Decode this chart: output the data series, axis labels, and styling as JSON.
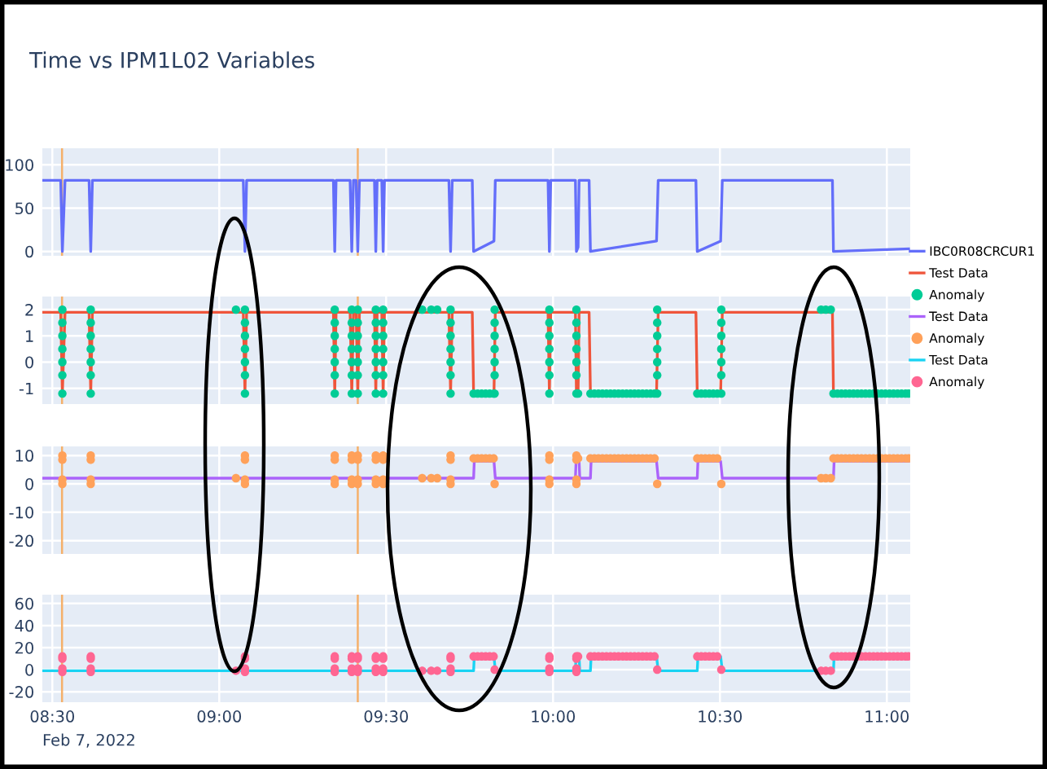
{
  "chart_data": [
    {
      "type": "line",
      "title": "Time vs IPM1L02 Variables",
      "xlim": [
        8.47,
        11.07
      ],
      "xticks": [
        {
          "value": 8.5,
          "label": null
        },
        {
          "value": 9,
          "label": null
        },
        {
          "value": 9.5,
          "label": null
        },
        {
          "value": 10,
          "label": null
        },
        {
          "value": 10.5,
          "label": null
        },
        {
          "value": 11,
          "label": null
        }
      ],
      "ylim": [
        -5,
        119
      ],
      "yticks": [
        0,
        50,
        100
      ],
      "tick_labels": "y",
      "grid": true,
      "legend": "right",
      "ref_lines": [
        {
          "axis": "x",
          "value": 8.529,
          "color": "#f5b06a"
        },
        {
          "axis": "x",
          "value": 9.415,
          "color": "#f5b06a"
        }
      ],
      "series": [
        {
          "name": "IBC0R08CRCUR1",
          "color": "#636efa",
          "x": [
            8.472,
            8.525,
            8.53,
            8.538,
            8.61,
            8.615,
            8.62,
            9.072,
            9.077,
            9.082,
            9.342,
            9.346,
            9.35,
            9.392,
            9.397,
            9.402,
            9.41,
            9.415,
            9.42,
            9.465,
            9.469,
            9.473,
            9.487,
            9.491,
            9.495,
            9.688,
            9.693,
            9.698,
            9.758,
            9.762,
            9.823,
            9.827,
            9.985,
            9.989,
            9.993,
            10.067,
            10.07,
            10.075,
            10.078,
            10.108,
            10.112,
            10.31,
            10.315,
            10.428,
            10.432,
            10.502,
            10.507,
            10.837,
            10.84,
            11.065
          ],
          "values": [
            82,
            82,
            0,
            82,
            82,
            0,
            82,
            82,
            0,
            82,
            82,
            0,
            82,
            82,
            0,
            82,
            82,
            0,
            82,
            82,
            0,
            82,
            82,
            0,
            82,
            82,
            0,
            82,
            82,
            0,
            12,
            82,
            82,
            0,
            82,
            82,
            0,
            5,
            82,
            82,
            0,
            12,
            82,
            82,
            0,
            12,
            82,
            82,
            0,
            3
          ]
        }
      ]
    },
    {
      "type": "line",
      "xlim": [
        8.47,
        11.07
      ],
      "xticks": [
        {
          "value": 8.5,
          "label": null
        },
        {
          "value": 9,
          "label": null
        },
        {
          "value": 9.5,
          "label": null
        },
        {
          "value": 10,
          "label": null
        },
        {
          "value": 10.5,
          "label": null
        },
        {
          "value": 11,
          "label": null
        }
      ],
      "ylim": [
        -1.6,
        2.5
      ],
      "yticks": [
        -1,
        0,
        1,
        2
      ],
      "tick_labels": "y",
      "grid": true,
      "legend": "right",
      "ref_lines": [
        {
          "axis": "x",
          "value": 8.529,
          "color": "#f5b06a"
        },
        {
          "axis": "x",
          "value": 9.415,
          "color": "#f5b06a"
        }
      ],
      "series": [
        {
          "name": "Test Data",
          "color": "#ef553b",
          "x": [
            8.472,
            8.525,
            8.53,
            8.538,
            8.61,
            8.615,
            8.62,
            9.072,
            9.077,
            9.082,
            9.342,
            9.346,
            9.35,
            9.392,
            9.397,
            9.402,
            9.41,
            9.415,
            9.42,
            9.465,
            9.469,
            9.473,
            9.487,
            9.491,
            9.495,
            9.688,
            9.693,
            9.698,
            9.758,
            9.762,
            9.823,
            9.827,
            9.985,
            9.989,
            9.993,
            10.067,
            10.07,
            10.075,
            10.078,
            10.108,
            10.112,
            10.31,
            10.315,
            10.428,
            10.432,
            10.502,
            10.507,
            10.837,
            10.84,
            11.065
          ],
          "values": [
            1.9,
            1.9,
            -1.2,
            1.9,
            1.9,
            -1.2,
            1.9,
            1.9,
            -1.2,
            1.9,
            1.9,
            -1.2,
            1.9,
            1.9,
            -1.2,
            1.9,
            1.9,
            -1.2,
            1.9,
            1.9,
            -1.2,
            1.9,
            1.9,
            -1.2,
            1.9,
            1.9,
            -1.2,
            1.9,
            1.9,
            -1.2,
            -1.2,
            1.9,
            1.9,
            -1.2,
            1.9,
            1.9,
            -1.2,
            -1.2,
            1.9,
            1.9,
            -1.2,
            -1.2,
            1.9,
            1.9,
            -1.2,
            -1.2,
            1.9,
            1.9,
            -1.2,
            -1.2
          ]
        },
        {
          "name": "Anomaly",
          "type": "scatter",
          "marker": "circle",
          "color": "#00cc96",
          "x": [
            8.53,
            8.53,
            8.53,
            8.53,
            8.53,
            8.53,
            8.53,
            8.615,
            8.615,
            8.615,
            8.615,
            8.615,
            8.615,
            8.615,
            9.077,
            9.077,
            9.077,
            9.077,
            9.077,
            9.077,
            9.077,
            9.346,
            9.346,
            9.346,
            9.346,
            9.346,
            9.346,
            9.346,
            9.397,
            9.397,
            9.397,
            9.397,
            9.397,
            9.397,
            9.397,
            9.415,
            9.415,
            9.415,
            9.415,
            9.415,
            9.415,
            9.415,
            9.469,
            9.469,
            9.469,
            9.469,
            9.469,
            9.469,
            9.469,
            9.491,
            9.491,
            9.491,
            9.491,
            9.491,
            9.491,
            9.491,
            9.693,
            9.693,
            9.693,
            9.693,
            9.693,
            9.693,
            9.693,
            9.989,
            9.989,
            9.989,
            9.989,
            9.989,
            9.989,
            9.989,
            10.07,
            10.07,
            10.07,
            10.07,
            10.07,
            10.07,
            10.07,
            9.825,
            9.825,
            9.825,
            9.825,
            9.825,
            9.825,
            9.825,
            10.312,
            10.312,
            10.312,
            10.312,
            10.312,
            10.312,
            10.312,
            10.504,
            10.504,
            10.504,
            10.504,
            10.504,
            10.504,
            10.504,
            9.762,
            9.774,
            9.786,
            9.798,
            9.81,
            9.822,
            10.075,
            10.112,
            10.124,
            10.136,
            10.148,
            10.16,
            10.172,
            10.184,
            10.196,
            10.208,
            10.22,
            10.232,
            10.244,
            10.256,
            10.268,
            10.28,
            10.292,
            10.304,
            10.432,
            10.444,
            10.456,
            10.468,
            10.48,
            10.492,
            10.84,
            10.852,
            10.864,
            10.876,
            10.888,
            10.9,
            10.912,
            10.924,
            10.936,
            10.948,
            10.96,
            10.972,
            10.984,
            10.996,
            11.008,
            11.02,
            11.032,
            11.044,
            11.056,
            11.065,
            9.05,
            9.608,
            9.635,
            9.653,
            10.803,
            10.817,
            10.832
          ],
          "values": [
            2,
            1.5,
            1,
            0.5,
            0,
            -0.5,
            -1.2,
            2,
            1.5,
            1,
            0.5,
            0,
            -0.5,
            -1.2,
            2,
            1.5,
            1,
            0.5,
            0,
            -0.5,
            -1.2,
            2,
            1.5,
            1,
            0.5,
            0,
            -0.5,
            -1.2,
            2,
            1.5,
            1,
            0.5,
            0,
            -0.5,
            -1.2,
            2,
            1.5,
            1,
            0.5,
            0,
            -0.5,
            -1.2,
            2,
            1.5,
            1,
            0.5,
            0,
            -0.5,
            -1.2,
            2,
            1.5,
            1,
            0.5,
            0,
            -0.5,
            -1.2,
            2,
            1.5,
            1,
            0.5,
            0,
            -0.5,
            -1.2,
            2,
            1.5,
            1,
            0.5,
            0,
            -0.5,
            -1.2,
            2,
            1.5,
            1,
            0.5,
            0,
            -0.5,
            -1.2,
            2,
            1.5,
            1,
            0.5,
            0,
            -0.5,
            -1.2,
            2,
            1.5,
            1,
            0.5,
            0,
            -0.5,
            -1.2,
            2,
            1.5,
            1,
            0.5,
            0,
            -0.5,
            -1.2,
            -1.2,
            -1.2,
            -1.2,
            -1.2,
            -1.2,
            -1.2,
            -1.2,
            -1.2,
            -1.2,
            -1.2,
            -1.2,
            -1.2,
            -1.2,
            -1.2,
            -1.2,
            -1.2,
            -1.2,
            -1.2,
            -1.2,
            -1.2,
            -1.2,
            -1.2,
            -1.2,
            -1.2,
            -1.2,
            -1.2,
            -1.2,
            -1.2,
            -1.2,
            -1.2,
            -1.2,
            -1.2,
            -1.2,
            -1.2,
            -1.2,
            -1.2,
            -1.2,
            -1.2,
            -1.2,
            -1.2,
            -1.2,
            -1.2,
            -1.2,
            -1.2,
            -1.2,
            -1.2,
            -1.2,
            -1.2,
            -1.2,
            -1.2,
            2,
            2,
            2,
            2,
            2,
            2,
            2
          ]
        }
      ]
    },
    {
      "type": "line",
      "xlim": [
        8.47,
        11.07
      ],
      "xticks": [
        {
          "value": 8.5,
          "label": null
        },
        {
          "value": 9,
          "label": null
        },
        {
          "value": 9.5,
          "label": null
        },
        {
          "value": 10,
          "label": null
        },
        {
          "value": 10.5,
          "label": null
        },
        {
          "value": 11,
          "label": null
        }
      ],
      "ylim": [
        -24.7,
        13.2
      ],
      "yticks": [
        -20,
        -10,
        0,
        10
      ],
      "tick_labels": "y",
      "grid": true,
      "legend": "right",
      "ref_lines": [
        {
          "axis": "x",
          "value": 8.529,
          "color": "#f5b06a"
        },
        {
          "axis": "x",
          "value": 9.415,
          "color": "#f5b06a"
        }
      ],
      "series": [
        {
          "name": "Test Data",
          "color": "#ab63fa",
          "x": [
            8.472,
            9.762,
            9.764,
            9.823,
            9.827,
            10.067,
            10.069,
            10.078,
            10.08,
            10.112,
            10.114,
            10.31,
            10.315,
            10.432,
            10.434,
            10.502,
            10.507,
            10.84,
            10.842,
            11.065
          ],
          "values": [
            2,
            2,
            8,
            8,
            2,
            2,
            8,
            8,
            2,
            2,
            8,
            8,
            2,
            2,
            8,
            8,
            2,
            2,
            8,
            8
          ]
        },
        {
          "name": "Anomaly",
          "type": "scatter",
          "marker": "circle",
          "color": "#ffa15a",
          "x": [
            8.53,
            8.53,
            8.53,
            8.53,
            8.615,
            8.615,
            8.615,
            8.615,
            9.077,
            9.077,
            9.077,
            9.077,
            9.346,
            9.346,
            9.346,
            9.346,
            9.397,
            9.397,
            9.397,
            9.397,
            9.415,
            9.415,
            9.415,
            9.415,
            9.469,
            9.469,
            9.469,
            9.469,
            9.491,
            9.491,
            9.491,
            9.491,
            9.693,
            9.693,
            9.693,
            9.693,
            9.989,
            9.989,
            9.989,
            9.989,
            10.07,
            10.07,
            10.07,
            10.07,
            9.825,
            10.312,
            10.504,
            9.762,
            9.774,
            9.786,
            9.798,
            9.81,
            9.822,
            10.075,
            10.112,
            10.124,
            10.136,
            10.148,
            10.16,
            10.172,
            10.184,
            10.196,
            10.208,
            10.22,
            10.232,
            10.244,
            10.256,
            10.268,
            10.28,
            10.292,
            10.304,
            10.432,
            10.444,
            10.456,
            10.468,
            10.48,
            10.492,
            10.84,
            10.852,
            10.864,
            10.876,
            10.888,
            10.9,
            10.912,
            10.924,
            10.936,
            10.948,
            10.96,
            10.972,
            10.984,
            10.996,
            11.008,
            11.02,
            11.032,
            11.044,
            11.056,
            11.065,
            9.05,
            9.608,
            9.635,
            9.653,
            10.803,
            10.817,
            10.832
          ],
          "values": [
            10,
            8.5,
            1.5,
            0,
            10,
            8.5,
            1.5,
            0,
            10,
            8.5,
            1.5,
            0,
            10,
            8.5,
            1.5,
            0,
            10,
            8.5,
            1.5,
            0,
            10,
            8.5,
            1.5,
            0,
            10,
            8.5,
            1.5,
            0,
            10,
            8.5,
            1.5,
            0,
            10,
            8.5,
            1.5,
            0,
            10,
            8.5,
            1.5,
            0,
            10,
            8.5,
            1.5,
            0,
            0,
            0,
            0,
            9,
            9,
            9,
            9,
            9,
            9,
            9,
            9,
            9,
            9,
            9,
            9,
            9,
            9,
            9,
            9,
            9,
            9,
            9,
            9,
            9,
            9,
            9,
            9,
            9,
            9,
            9,
            9,
            9,
            9,
            9,
            9,
            9,
            9,
            9,
            9,
            9,
            9,
            9,
            9,
            9,
            9,
            9,
            9,
            9,
            9,
            9,
            9,
            9,
            9,
            2,
            2,
            2,
            2,
            2,
            2,
            2
          ]
        }
      ]
    },
    {
      "type": "line",
      "xlim": [
        8.47,
        11.07
      ],
      "xticks": [
        {
          "value": 8.5,
          "label": "08:30"
        },
        {
          "value": 9,
          "label": "09:00"
        },
        {
          "value": 9.5,
          "label": "09:30"
        },
        {
          "value": 10,
          "label": "10:00"
        },
        {
          "value": 10.5,
          "label": "10:30"
        },
        {
          "value": 11,
          "label": "11:00"
        }
      ],
      "ylim": [
        -29.5,
        68
      ],
      "yticks": [
        -20,
        0,
        20,
        40,
        60
      ],
      "grid": true,
      "legend": "right",
      "annotations": [
        "Feb 7, 2022"
      ],
      "ref_lines": [
        {
          "axis": "x",
          "value": 8.529,
          "color": "#f5b06a"
        },
        {
          "axis": "x",
          "value": 9.415,
          "color": "#f5b06a"
        }
      ],
      "series": [
        {
          "name": "Test Data",
          "color": "#19d3f3",
          "x": [
            8.472,
            9.762,
            9.764,
            9.823,
            9.827,
            10.067,
            10.069,
            10.078,
            10.08,
            10.112,
            10.114,
            10.31,
            10.315,
            10.432,
            10.434,
            10.502,
            10.507,
            10.84,
            10.842,
            11.065
          ],
          "values": [
            -1,
            -1,
            12,
            12,
            -1,
            -1,
            12,
            12,
            -1,
            -1,
            12,
            12,
            -1,
            -1,
            12,
            12,
            -1,
            -1,
            12,
            12
          ]
        },
        {
          "name": "Anomaly",
          "type": "scatter",
          "marker": "circle",
          "color": "#ff6692",
          "x": [
            8.53,
            8.53,
            8.53,
            8.53,
            8.615,
            8.615,
            8.615,
            8.615,
            9.077,
            9.077,
            9.077,
            9.077,
            9.346,
            9.346,
            9.346,
            9.346,
            9.397,
            9.397,
            9.397,
            9.397,
            9.415,
            9.415,
            9.415,
            9.415,
            9.469,
            9.469,
            9.469,
            9.469,
            9.491,
            9.491,
            9.491,
            9.491,
            9.693,
            9.693,
            9.693,
            9.693,
            9.989,
            9.989,
            9.989,
            9.989,
            10.07,
            10.07,
            10.07,
            10.07,
            9.825,
            10.312,
            10.504,
            9.762,
            9.774,
            9.786,
            9.798,
            9.81,
            9.822,
            10.075,
            10.112,
            10.124,
            10.136,
            10.148,
            10.16,
            10.172,
            10.184,
            10.196,
            10.208,
            10.22,
            10.232,
            10.244,
            10.256,
            10.268,
            10.28,
            10.292,
            10.304,
            10.432,
            10.444,
            10.456,
            10.468,
            10.48,
            10.492,
            10.84,
            10.852,
            10.864,
            10.876,
            10.888,
            10.9,
            10.912,
            10.924,
            10.936,
            10.948,
            10.96,
            10.972,
            10.984,
            10.996,
            11.008,
            11.02,
            11.032,
            11.044,
            11.056,
            11.065,
            9.05,
            9.608,
            9.635,
            9.653,
            10.803,
            10.817,
            10.832
          ],
          "values": [
            12,
            10,
            1,
            -2,
            12,
            10,
            1,
            -2,
            12,
            10,
            1,
            -2,
            12,
            10,
            1,
            -2,
            12,
            10,
            1,
            -2,
            12,
            10,
            1,
            -2,
            12,
            10,
            1,
            -2,
            12,
            10,
            1,
            -2,
            12,
            10,
            1,
            -2,
            12,
            10,
            1,
            -2,
            12,
            10,
            1,
            -2,
            0,
            0,
            0,
            12,
            12,
            12,
            12,
            12,
            12,
            12,
            12,
            12,
            12,
            12,
            12,
            12,
            12,
            12,
            12,
            12,
            12,
            12,
            12,
            12,
            12,
            12,
            12,
            12,
            12,
            12,
            12,
            12,
            12,
            12,
            12,
            12,
            12,
            12,
            12,
            12,
            12,
            12,
            12,
            12,
            12,
            12,
            12,
            12,
            12,
            12,
            12,
            12,
            12,
            -1,
            -1,
            -1,
            -1,
            -1,
            -1,
            -1
          ]
        }
      ]
    }
  ]
}
